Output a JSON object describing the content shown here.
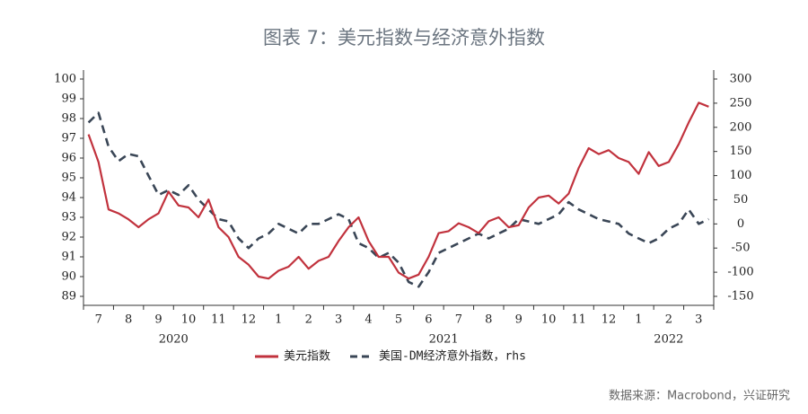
{
  "chart_data": {
    "type": "line",
    "title": "图表 7：美元指数与经济意外指数",
    "source": "数据来源：Macrobond，兴证研究",
    "categories": [
      null,
      "7",
      null,
      null,
      "8",
      null,
      null,
      "9",
      null,
      null,
      "10",
      null,
      null,
      "11",
      null,
      null,
      "12",
      null,
      null,
      "1",
      null,
      null,
      "2",
      null,
      null,
      "3",
      null,
      null,
      "4",
      null,
      null,
      "5",
      null,
      null,
      "6",
      null,
      null,
      "7",
      null,
      null,
      "8",
      null,
      null,
      "9",
      null,
      null,
      "10",
      null,
      null,
      "11",
      null,
      null,
      "12",
      null,
      null,
      "1",
      null,
      null,
      "2",
      null,
      null,
      "3",
      null
    ],
    "years": [
      "2020",
      "2021",
      "2022"
    ],
    "series": [
      {
        "name": "美元指数",
        "color": "#c1323d",
        "axis": "y",
        "values": [
          97.2,
          95.8,
          93.4,
          93.2,
          92.9,
          92.5,
          92.9,
          93.2,
          94.3,
          93.6,
          93.5,
          93.0,
          93.9,
          92.5,
          92.0,
          91.0,
          90.6,
          90.0,
          89.9,
          90.3,
          90.5,
          91.0,
          90.4,
          90.8,
          91.0,
          91.8,
          92.5,
          93.0,
          91.8,
          91.0,
          91.0,
          90.2,
          89.9,
          90.1,
          91.0,
          92.2,
          92.3,
          92.7,
          92.5,
          92.2,
          92.8,
          93.0,
          92.5,
          92.6,
          93.5,
          94.0,
          94.1,
          93.7,
          94.2,
          95.5,
          96.5,
          96.2,
          96.4,
          96.0,
          95.8,
          95.2,
          96.3,
          95.6,
          95.8,
          96.7,
          97.8,
          98.8,
          98.6
        ]
      },
      {
        "name": "美国-DM经济意外指数，rhs",
        "color": "#3a4656",
        "axis": "y2",
        "values": [
          210,
          230,
          160,
          130,
          145,
          140,
          100,
          60,
          70,
          60,
          80,
          50,
          30,
          10,
          5,
          -30,
          -50,
          -30,
          -20,
          0,
          -10,
          -20,
          0,
          0,
          10,
          20,
          10,
          -40,
          -50,
          -70,
          -60,
          -80,
          -120,
          -130,
          -100,
          -60,
          -50,
          -40,
          -30,
          -20,
          -30,
          -20,
          -10,
          10,
          5,
          0,
          10,
          20,
          45,
          30,
          20,
          10,
          5,
          0,
          -20,
          -30,
          -40,
          -30,
          -10,
          0,
          30,
          0,
          10
        ]
      }
    ],
    "ylim": [
      89,
      100
    ],
    "yticks": [
      89,
      90,
      91,
      92,
      93,
      94,
      95,
      96,
      97,
      98,
      99,
      100
    ],
    "y2lim": [
      -150,
      300
    ],
    "y2ticks": [
      -150,
      -100,
      -50,
      0,
      50,
      100,
      150,
      200,
      250,
      300
    ]
  }
}
